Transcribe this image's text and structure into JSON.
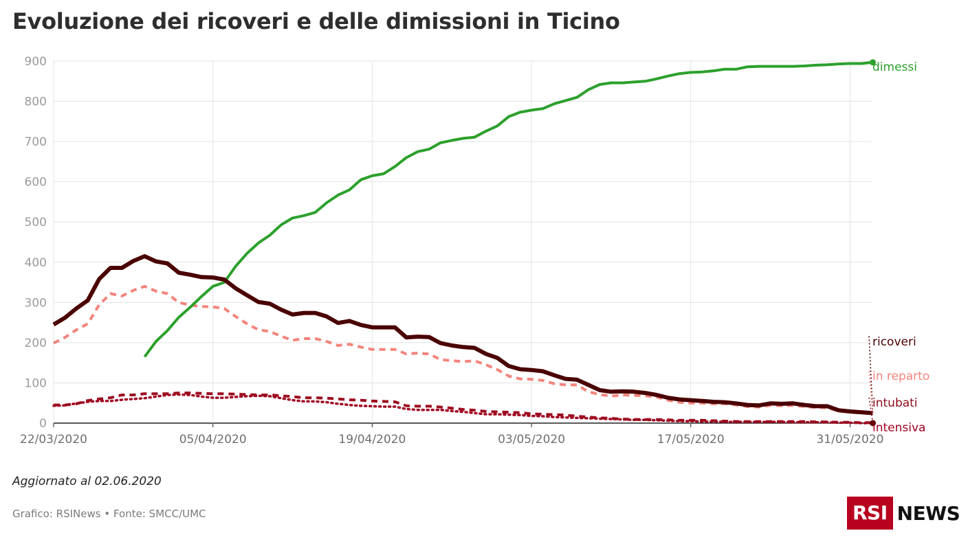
{
  "title": "Evoluzione dei ricoveri e delle dimissioni in Ticino",
  "updated": "Aggiornato al 02.06.2020",
  "source": "Grafico: RSINews • Fonte: SMCC/UMC",
  "logo": {
    "box": "RSI",
    "text": "NEWS",
    "color": "#b8001f"
  },
  "chart_data": {
    "type": "line",
    "title": "Evoluzione dei ricoveri e delle dimissioni in Ticino",
    "xlabel": "",
    "ylabel": "",
    "x_start": "22/03/2020",
    "x_end": "01/06/2020",
    "xticks": [
      "22/03/2020",
      "05/04/2020",
      "19/04/2020",
      "03/05/2020",
      "17/05/2020",
      "31/05/2020"
    ],
    "yticks": [
      0,
      100,
      200,
      300,
      400,
      500,
      600,
      700,
      800,
      900
    ],
    "ylim": [
      0,
      900
    ],
    "grid": true,
    "series": [
      {
        "name": "dimessi",
        "color": "#2ca02c",
        "style": "solid",
        "start": "30/03/2020",
        "values": [
          165,
          203,
          230,
          263,
          288,
          315,
          340,
          350,
          390,
          422,
          448,
          467,
          493,
          510,
          516,
          524,
          548,
          567,
          580,
          605,
          615,
          620,
          638,
          660,
          675,
          681,
          697,
          703,
          708,
          711,
          726,
          739,
          762,
          773,
          778,
          782,
          794,
          802,
          810,
          829,
          842,
          846,
          846,
          848,
          850,
          856,
          863,
          869,
          872,
          873,
          876,
          880,
          880,
          886,
          887,
          887,
          887,
          887,
          888,
          890,
          891,
          893,
          894,
          894,
          897
        ]
      },
      {
        "name": "ricoveri",
        "color": "#4a0000",
        "style": "solid",
        "start": "22/03/2020",
        "values": [
          245,
          262,
          285,
          305,
          358,
          386,
          386,
          403,
          415,
          402,
          397,
          374,
          369,
          363,
          362,
          357,
          335,
          318,
          301,
          297,
          282,
          270,
          274,
          274,
          265,
          249,
          254,
          244,
          238,
          238,
          238,
          213,
          215,
          214,
          199,
          193,
          189,
          187,
          172,
          162,
          142,
          134,
          132,
          129,
          119,
          110,
          108,
          95,
          82,
          78,
          79,
          78,
          75,
          70,
          63,
          59,
          57,
          55,
          53,
          52,
          49,
          45,
          44,
          49,
          48,
          49,
          45,
          42,
          42,
          32,
          29,
          27,
          25
        ]
      },
      {
        "name": "in reparto",
        "color": "#f4847c",
        "style": "dashed",
        "start": "22/03/2020",
        "values": [
          199,
          213,
          232,
          247,
          294,
          322,
          316,
          330,
          340,
          328,
          322,
          300,
          293,
          290,
          289,
          285,
          265,
          247,
          232,
          228,
          216,
          206,
          210,
          210,
          203,
          193,
          196,
          189,
          183,
          183,
          183,
          172,
          174,
          172,
          158,
          155,
          153,
          155,
          145,
          133,
          117,
          110,
          109,
          106,
          98,
          95,
          95,
          78,
          71,
          67,
          70,
          69,
          68,
          65,
          57,
          52,
          50,
          50,
          48,
          48,
          45,
          41,
          40,
          44,
          43,
          44,
          41,
          39,
          38,
          30,
          27,
          25,
          24
        ]
      },
      {
        "name": "intubati",
        "color": "#9c0a1e",
        "style": "dashed",
        "start": "22/03/2020",
        "values": [
          45,
          45,
          48,
          56,
          60,
          63,
          70,
          70,
          73,
          73,
          73,
          75,
          75,
          74,
          73,
          73,
          72,
          71,
          70,
          70,
          68,
          66,
          63,
          63,
          62,
          60,
          58,
          57,
          55,
          54,
          53,
          43,
          42,
          42,
          40,
          37,
          34,
          32,
          29,
          28,
          27,
          26,
          23,
          22,
          21,
          20,
          17,
          15,
          13,
          12,
          10,
          9,
          9,
          9,
          8,
          7,
          7,
          7,
          6,
          5,
          4,
          4,
          4,
          4,
          4,
          4,
          4,
          3,
          3,
          2,
          2,
          1,
          1
        ]
      },
      {
        "name": "intensiva",
        "color": "#a00020",
        "style": "dotted",
        "start": "22/03/2020",
        "values": [
          43,
          44,
          49,
          53,
          55,
          55,
          58,
          60,
          62,
          66,
          70,
          71,
          70,
          66,
          63,
          63,
          65,
          67,
          68,
          67,
          62,
          57,
          54,
          54,
          52,
          48,
          45,
          43,
          42,
          41,
          41,
          35,
          33,
          33,
          33,
          30,
          28,
          25,
          22,
          22,
          21,
          20,
          18,
          17,
          15,
          14,
          13,
          12,
          11,
          10,
          9,
          8,
          8,
          7,
          6,
          5,
          5,
          4,
          4,
          3,
          3,
          3,
          3,
          3,
          3,
          2,
          2,
          2,
          2,
          1,
          1,
          0,
          0
        ]
      }
    ]
  }
}
